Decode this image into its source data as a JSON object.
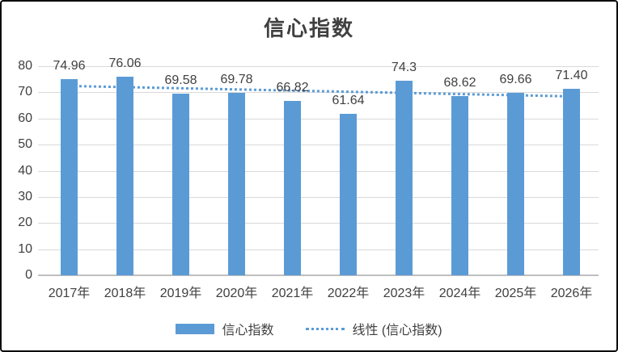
{
  "chart_data": {
    "type": "bar",
    "title": "信心指数",
    "categories": [
      "2017年",
      "2018年",
      "2019年",
      "2020年",
      "2021年",
      "2022年",
      "2023年",
      "2024年",
      "2025年",
      "2026年"
    ],
    "series": [
      {
        "name": "信心指数",
        "values": [
          74.96,
          76.06,
          69.58,
          69.78,
          66.82,
          61.64,
          74.3,
          68.62,
          69.66,
          71.4
        ],
        "data_labels": [
          "74.96",
          "76.06",
          "69.58",
          "69.78",
          "66.82",
          "61.64",
          "74.3",
          "68.62",
          "69.66",
          "71.40"
        ],
        "color": "#5B9BD5"
      }
    ],
    "trendline": {
      "label": "线性 (信心指数)",
      "type": "linear",
      "style": "dotted",
      "color": "#5B9BD5"
    },
    "xlabel": "",
    "ylabel": "",
    "ylim": [
      0,
      80
    ],
    "yticks": [
      0,
      10,
      20,
      30,
      40,
      50,
      60,
      70,
      80
    ],
    "grid": true,
    "legend_position": "bottom",
    "colors": {
      "bar": "#5B9BD5",
      "trendline": "#5B9BD5",
      "gridline": "#D9D9D9",
      "axis_line": "#BFBFBF",
      "text": "#404040",
      "title": "#404040",
      "frame_border": "#0a0a0a",
      "background": "#ffffff"
    }
  }
}
